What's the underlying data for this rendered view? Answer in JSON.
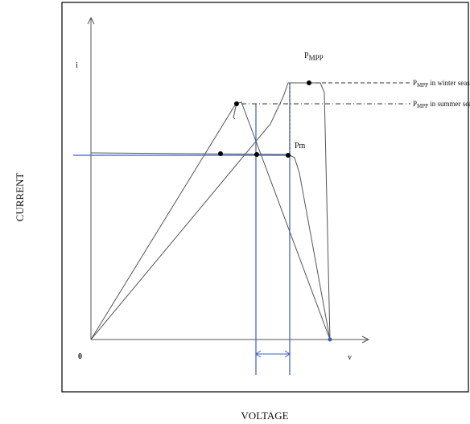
{
  "axes": {
    "y_axis_label": "CURRENT",
    "x_axis_label": "VOLTAGE",
    "y_symbol": "i",
    "x_symbol": "v",
    "origin": "0"
  },
  "annotations": {
    "pmpp_top": {
      "base": "P",
      "sub": "MPP"
    },
    "pmpp_winter": {
      "base": "P",
      "sub": "MPP",
      "suffix": " in winter season"
    },
    "pmpp_summer": {
      "base": "P",
      "sub": "MPP",
      "suffix": " in summer season"
    },
    "pm": "Pm"
  },
  "colors": {
    "curve": "#444444",
    "load_line": "#3a5fc0",
    "grid_dash": "#333333"
  }
}
